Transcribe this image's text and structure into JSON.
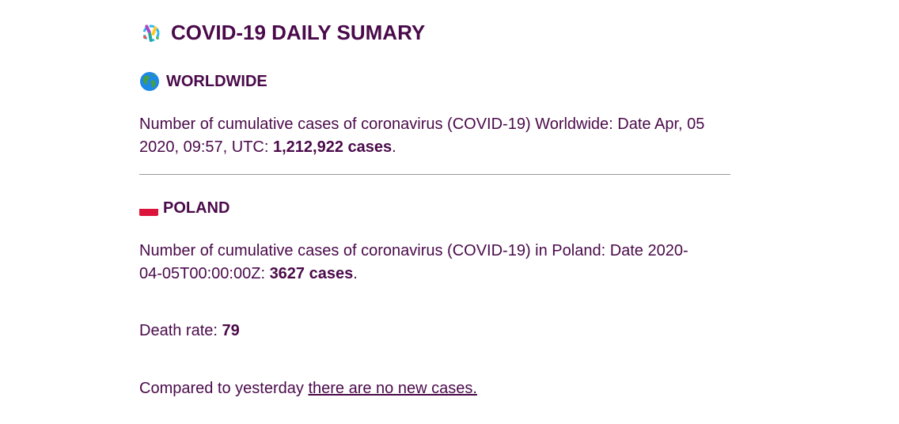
{
  "header": {
    "title": "COVID-19 DAILY SUMARY",
    "icon": "microbe-icon"
  },
  "worldwide": {
    "heading": "WORLDWIDE",
    "icon": "globe-icon",
    "text_prefix": "Number of cumulative cases of coronavirus (COVID-19) Worldwide: Date Apr, 05 2020, 09:57, UTC: ",
    "cases": "1,212,922 cases",
    "text_suffix": "."
  },
  "poland": {
    "heading": "POLAND",
    "icon": "poland-flag-icon",
    "text_prefix": "Number of cumulative cases of coronavirus (COVID-19) in Poland: Date 2020-04-05T00:00:00Z: ",
    "cases": "3627 cases",
    "text_suffix": ".",
    "death_label": "Death rate: ",
    "death_value": "79",
    "compare_prefix": "Compared to yesterday ",
    "compare_link": "there are no new cases."
  },
  "colors": {
    "text": "#4a0a4a",
    "divider": "#999999",
    "flag_white": "#ffffff",
    "flag_red": "#dc143c"
  }
}
